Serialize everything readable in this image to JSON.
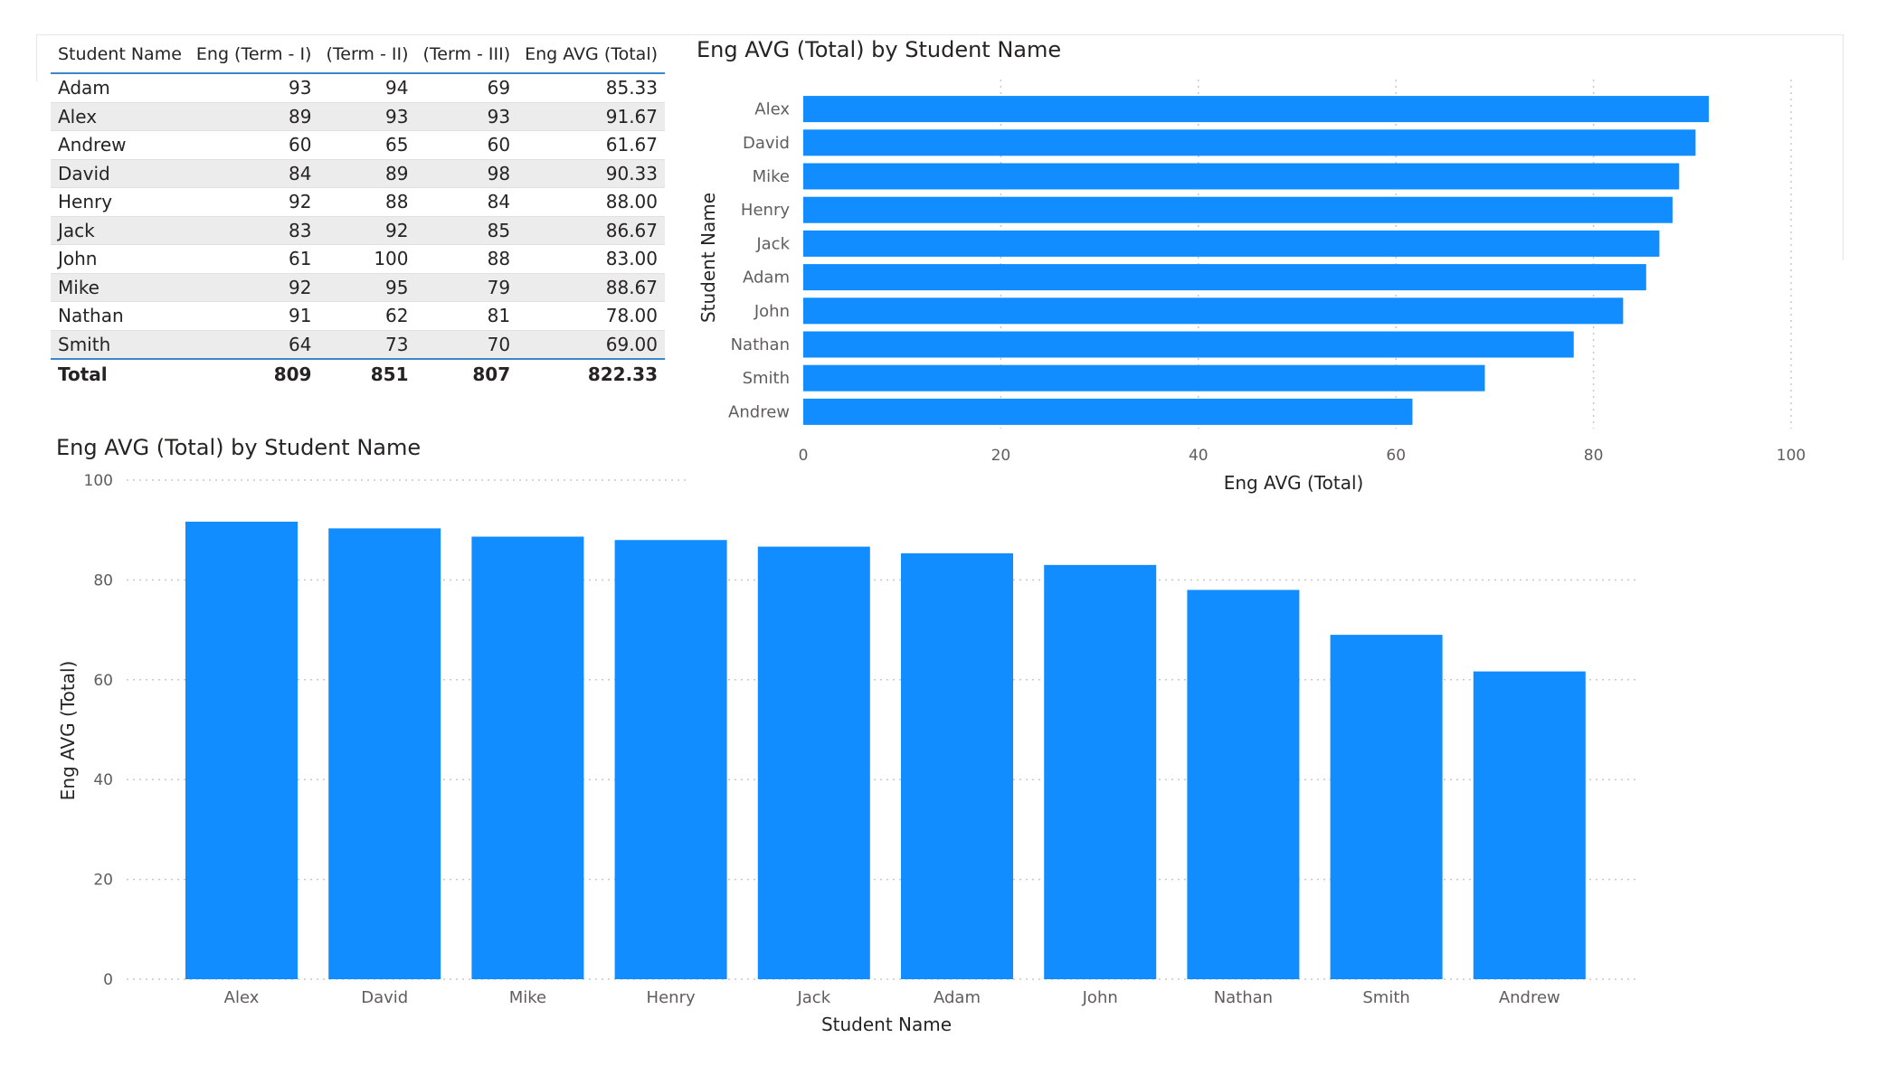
{
  "table": {
    "columns": [
      "Student Name",
      "Eng (Term - I)",
      "(Term - II)",
      "(Term - III)",
      "Eng AVG (Total)"
    ],
    "rows": [
      [
        "Adam",
        "93",
        "94",
        "69",
        "85.33"
      ],
      [
        "Alex",
        "89",
        "93",
        "93",
        "91.67"
      ],
      [
        "Andrew",
        "60",
        "65",
        "60",
        "61.67"
      ],
      [
        "David",
        "84",
        "89",
        "98",
        "90.33"
      ],
      [
        "Henry",
        "92",
        "88",
        "84",
        "88.00"
      ],
      [
        "Jack",
        "83",
        "92",
        "85",
        "86.67"
      ],
      [
        "John",
        "61",
        "100",
        "88",
        "83.00"
      ],
      [
        "Mike",
        "92",
        "95",
        "79",
        "88.67"
      ],
      [
        "Nathan",
        "91",
        "62",
        "81",
        "78.00"
      ],
      [
        "Smith",
        "64",
        "73",
        "70",
        "69.00"
      ]
    ],
    "total": [
      "Total",
      "809",
      "851",
      "807",
      "822.33"
    ]
  },
  "colors": {
    "bar": "#118dff",
    "grid": "#c8c8c8",
    "accent_line": "#3a88c9"
  },
  "chart_data": [
    {
      "type": "bar",
      "orientation": "horizontal",
      "title": "Eng AVG (Total) by Student Name",
      "xlabel": "Eng AVG (Total)",
      "ylabel": "Student Name",
      "categories": [
        "Alex",
        "David",
        "Mike",
        "Henry",
        "Jack",
        "Adam",
        "John",
        "Nathan",
        "Smith",
        "Andrew"
      ],
      "values": [
        91.67,
        90.33,
        88.67,
        88.0,
        86.67,
        85.33,
        83.0,
        78.0,
        69.0,
        61.67
      ],
      "xlim": [
        0,
        100
      ],
      "ticks": [
        0,
        20,
        40,
        60,
        80,
        100
      ],
      "grid": true
    },
    {
      "type": "bar",
      "orientation": "vertical",
      "title": "Eng AVG (Total) by Student Name",
      "xlabel": "Student Name",
      "ylabel": "Eng AVG (Total)",
      "categories": [
        "Alex",
        "David",
        "Mike",
        "Henry",
        "Jack",
        "Adam",
        "John",
        "Nathan",
        "Smith",
        "Andrew"
      ],
      "values": [
        91.67,
        90.33,
        88.67,
        88.0,
        86.67,
        85.33,
        83.0,
        78.0,
        69.0,
        61.67
      ],
      "ylim": [
        0,
        100
      ],
      "ticks": [
        0,
        20,
        40,
        60,
        80,
        100
      ],
      "grid": true
    }
  ]
}
